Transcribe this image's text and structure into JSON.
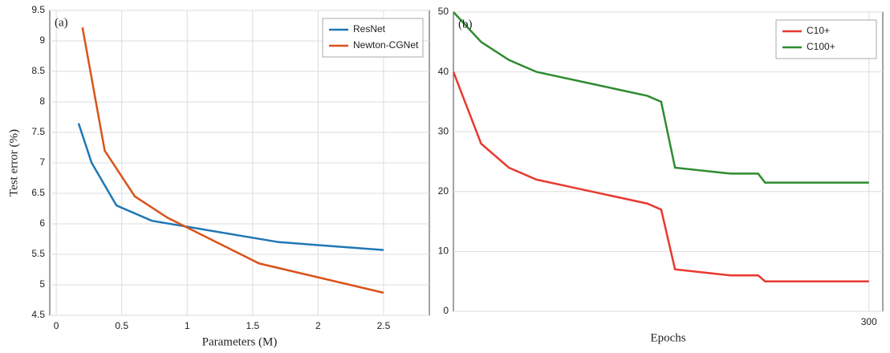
{
  "chart_data": [
    {
      "type": "line",
      "panel": "(a)",
      "xlabel": "Parameters (M)",
      "ylabel": "Test error (%)",
      "xlim": [
        -0.05,
        2.85
      ],
      "ylim": [
        4.5,
        9.5
      ],
      "xticks": [
        0,
        0.5,
        1,
        1.5,
        2,
        2.5
      ],
      "yticks": [
        4.5,
        5,
        5.5,
        6,
        6.5,
        7,
        7.5,
        8,
        8.5,
        9,
        9.5
      ],
      "grid": true,
      "legend": "upper right",
      "series": [
        {
          "name": "ResNet",
          "color": "#1f77b4",
          "x": [
            0.17,
            0.27,
            0.46,
            0.73,
            1.7,
            2.5
          ],
          "values": [
            7.65,
            7.0,
            6.3,
            6.05,
            5.7,
            5.57
          ]
        },
        {
          "name": "Newton-CGNet",
          "color": "#d95319",
          "x": [
            0.2,
            0.37,
            0.6,
            0.85,
            1.55,
            2.5
          ],
          "values": [
            9.22,
            7.2,
            6.45,
            6.1,
            5.35,
            4.87
          ]
        }
      ]
    },
    {
      "type": "line",
      "panel": "(b)",
      "xlabel": "Epochs",
      "xlim": [
        0,
        310
      ],
      "ylim": [
        0,
        50
      ],
      "xticks": [
        300
      ],
      "yticks": [
        0,
        10,
        20,
        30,
        40,
        50
      ],
      "grid": true,
      "legend": "upper right",
      "series": [
        {
          "name": "C10+",
          "color": "#e8392f",
          "x": [
            0,
            20,
            40,
            60,
            80,
            100,
            120,
            140,
            150,
            160,
            180,
            200,
            220,
            225,
            240,
            260,
            280,
            300
          ],
          "values": [
            40,
            28,
            24,
            22,
            21,
            20,
            19,
            18,
            17,
            7,
            6.5,
            6,
            6,
            5,
            5,
            5,
            5,
            5
          ]
        },
        {
          "name": "C100+",
          "color": "#2e8b2e",
          "x": [
            0,
            20,
            40,
            60,
            80,
            100,
            120,
            140,
            150,
            160,
            180,
            200,
            220,
            225,
            240,
            260,
            280,
            300
          ],
          "values": [
            50,
            45,
            42,
            40,
            39,
            38,
            37,
            36,
            35,
            24,
            23.5,
            23,
            23,
            21.5,
            21.5,
            21.5,
            21.5,
            21.5
          ]
        }
      ]
    }
  ]
}
